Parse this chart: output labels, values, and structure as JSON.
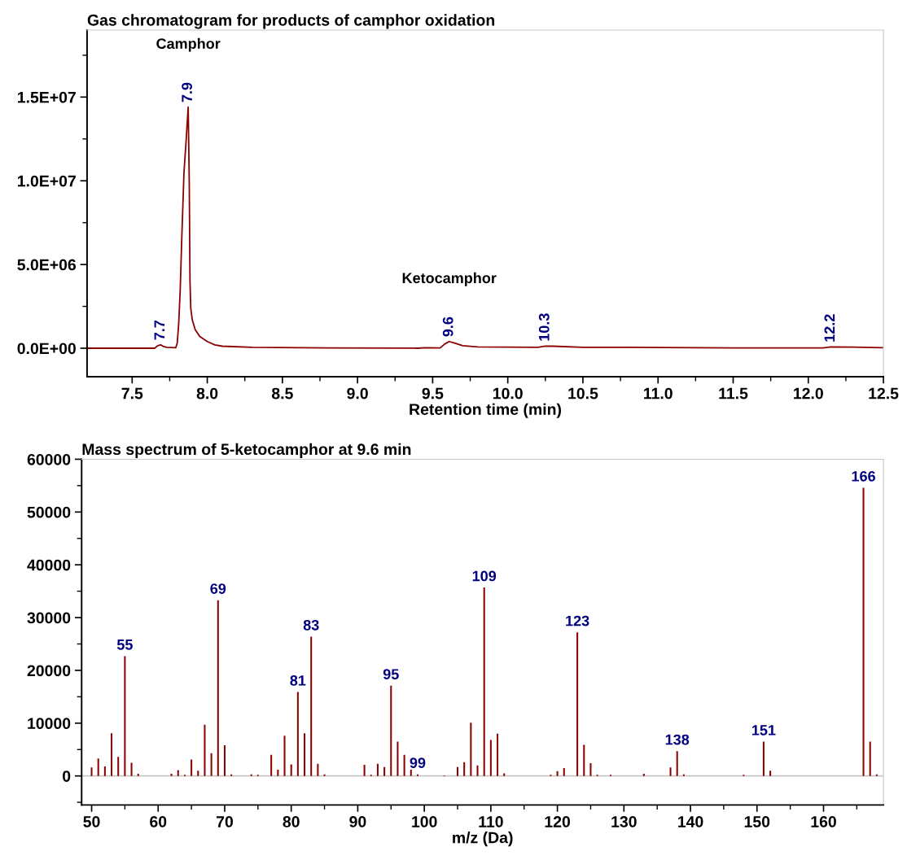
{
  "chart_data": [
    {
      "type": "line",
      "title": "Gas chromatogram for products of camphor oxidation",
      "xlabel": "Retention time (min)",
      "x": [
        7.2,
        7.6,
        7.65,
        7.67,
        7.69,
        7.71,
        7.73,
        7.79,
        7.8,
        7.81,
        7.82,
        7.83,
        7.845,
        7.86,
        7.873,
        7.88,
        7.885,
        7.89,
        7.9,
        7.92,
        7.95,
        8.0,
        8.05,
        8.1,
        8.3,
        8.8,
        9.4,
        9.45,
        9.55,
        9.58,
        9.61,
        9.65,
        9.7,
        9.8,
        10.2,
        10.25,
        10.3,
        10.5,
        10.8,
        11.5,
        12.1,
        12.15,
        12.3,
        12.5
      ],
      "series": [
        {
          "color": "#8b0000",
          "values": [
            0,
            0,
            0,
            150000,
            200000,
            100000,
            50000,
            30000,
            300000,
            1500000,
            3500000,
            6500000,
            10500000,
            12500000,
            14400000,
            10000000,
            4000000,
            2400000,
            1700000,
            1100000,
            700000,
            400000,
            200000,
            120000,
            50000,
            20000,
            0,
            30000,
            20000,
            250000,
            400000,
            300000,
            150000,
            80000,
            50000,
            130000,
            120000,
            50000,
            50000,
            20000,
            20000,
            80000,
            70000,
            30000
          ]
        }
      ],
      "annotations": [
        {
          "text": "7.7",
          "x": 7.69,
          "y": 200000
        },
        {
          "text": "7.9",
          "x": 7.873,
          "y": 14400000
        },
        {
          "text": "9.6",
          "x": 9.61,
          "y": 400000
        },
        {
          "text": "10.3",
          "x": 10.25,
          "y": 130000
        },
        {
          "text": "12.2",
          "x": 12.15,
          "y": 80000
        },
        "Camphor",
        "Ketocamphor"
      ],
      "xlim": [
        7.2,
        12.5
      ],
      "xticks": [
        {
          "value": 7.5,
          "label": "7.5"
        },
        {
          "value": 7.75,
          "label": null
        },
        {
          "value": 8.0,
          "label": "8.0"
        },
        {
          "value": 8.25,
          "label": null
        },
        {
          "value": 8.5,
          "label": "8.5"
        },
        {
          "value": 8.75,
          "label": null
        },
        {
          "value": 9.0,
          "label": "9.0"
        },
        {
          "value": 9.25,
          "label": null
        },
        {
          "value": 9.5,
          "label": "9.5"
        },
        {
          "value": 9.75,
          "label": null
        },
        {
          "value": 10.0,
          "label": "10.0"
        },
        {
          "value": 10.25,
          "label": null
        },
        {
          "value": 10.5,
          "label": "10.5"
        },
        {
          "value": 10.75,
          "label": null
        },
        {
          "value": 11.0,
          "label": "11.0"
        },
        {
          "value": 11.25,
          "label": null
        },
        {
          "value": 11.5,
          "label": "11.5"
        },
        {
          "value": 11.75,
          "label": null
        },
        {
          "value": 12.0,
          "label": "12.0"
        },
        {
          "value": 12.25,
          "label": null
        },
        {
          "value": 12.5,
          "label": "12.5"
        }
      ],
      "ylim": [
        -1700000,
        19000000
      ],
      "yticks": [
        {
          "value": 0,
          "label": "0.0E+00"
        },
        {
          "value": 2500000,
          "label": null
        },
        {
          "value": 5000000,
          "label": "5.0E+06"
        },
        {
          "value": 7500000,
          "label": null
        },
        {
          "value": 10000000,
          "label": "1.0E+07"
        },
        {
          "value": 12500000,
          "label": null
        },
        {
          "value": 15000000,
          "label": "1.5E+07"
        },
        {
          "value": 17500000,
          "label": null
        }
      ]
    },
    {
      "type": "bar",
      "title": "Mass spectrum of 5-ketocamphor at 9.6 min",
      "xlabel": "m/z (Da)",
      "x": [
        50,
        51,
        52,
        53,
        54,
        55,
        56,
        57,
        62,
        63,
        64,
        65,
        66,
        67,
        68,
        69,
        70,
        71,
        74,
        75,
        77,
        78,
        79,
        80,
        81,
        82,
        83,
        84,
        85,
        91,
        92,
        93,
        94,
        95,
        96,
        97,
        98,
        99,
        103,
        105,
        106,
        107,
        108,
        109,
        110,
        111,
        112,
        119,
        120,
        121,
        123,
        124,
        125,
        126,
        128,
        133,
        137,
        138,
        139,
        148,
        151,
        152,
        166,
        167,
        168
      ],
      "series": [
        {
          "color": "#8b0000",
          "values": [
            1600,
            3300,
            1800,
            8100,
            3600,
            22700,
            2500,
            400,
            400,
            1100,
            200,
            3100,
            1000,
            9700,
            4300,
            33300,
            5800,
            300,
            300,
            200,
            4000,
            1200,
            7600,
            2200,
            15900,
            8100,
            26400,
            2300,
            300,
            2100,
            200,
            2300,
            1700,
            17100,
            6500,
            4000,
            1200,
            300,
            100,
            1700,
            2600,
            10100,
            2000,
            35700,
            6800,
            8000,
            500,
            200,
            900,
            1500,
            27200,
            5900,
            2400,
            200,
            200,
            400,
            1600,
            4700,
            300,
            200,
            6500,
            1000,
            54600,
            6500,
            300
          ]
        }
      ],
      "annotations": [
        {
          "text": "55",
          "x": 55,
          "y": 22700
        },
        {
          "text": "69",
          "x": 69,
          "y": 33300
        },
        {
          "text": "81",
          "x": 81,
          "y": 15900
        },
        {
          "text": "83",
          "x": 83,
          "y": 26400
        },
        {
          "text": "95",
          "x": 95,
          "y": 17100
        },
        {
          "text": "99",
          "x": 99,
          "y": 300
        },
        {
          "text": "109",
          "x": 109,
          "y": 35700
        },
        {
          "text": "123",
          "x": 123,
          "y": 27200
        },
        {
          "text": "138",
          "x": 138,
          "y": 4700
        },
        {
          "text": "151",
          "x": 151,
          "y": 6500
        },
        {
          "text": "166",
          "x": 166,
          "y": 54600
        }
      ],
      "ref_lines": [
        {
          "axis": "y",
          "value": 0,
          "color": "#c8c8c8"
        }
      ],
      "xlim": [
        48.5,
        169
      ],
      "xticks": [
        50,
        {
          "value": 55,
          "label": null
        },
        60,
        {
          "value": 65,
          "label": null
        },
        70,
        {
          "value": 75,
          "label": null
        },
        80,
        {
          "value": 85,
          "label": null
        },
        90,
        {
          "value": 95,
          "label": null
        },
        100,
        {
          "value": 105,
          "label": null
        },
        110,
        {
          "value": 115,
          "label": null
        },
        120,
        {
          "value": 125,
          "label": null
        },
        130,
        {
          "value": 135,
          "label": null
        },
        140,
        {
          "value": 145,
          "label": null
        },
        150,
        {
          "value": 155,
          "label": null
        },
        160,
        {
          "value": 165,
          "label": null
        }
      ],
      "ylim": [
        -5500,
        60000
      ],
      "yticks": [
        {
          "value": -5000,
          "label": null
        },
        0,
        {
          "value": 5000,
          "label": null
        },
        10000,
        {
          "value": 15000,
          "label": null
        },
        20000,
        {
          "value": 25000,
          "label": null
        },
        30000,
        {
          "value": 35000,
          "label": null
        },
        40000,
        {
          "value": 45000,
          "label": null
        },
        50000,
        {
          "value": 55000,
          "label": null
        },
        60000
      ]
    }
  ]
}
